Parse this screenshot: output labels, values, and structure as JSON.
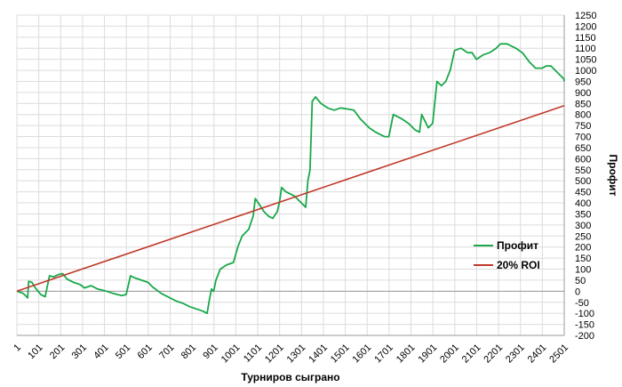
{
  "chart_data": {
    "type": "line",
    "xlabel": "Турниров сыграно",
    "ylabel": "Профит",
    "xlim": [
      1,
      2501
    ],
    "ylim": [
      -200,
      1250
    ],
    "x_ticks": [
      "1",
      "101",
      "201",
      "301",
      "401",
      "501",
      "601",
      "701",
      "801",
      "901",
      "1001",
      "1101",
      "1201",
      "1301",
      "1401",
      "1501",
      "1601",
      "1701",
      "1801",
      "1901",
      "2001",
      "2101",
      "2201",
      "2301",
      "2401",
      "2501"
    ],
    "y_ticks": [
      "1250",
      "1200",
      "1150",
      "1100",
      "1050",
      "1000",
      "950",
      "900",
      "850",
      "800",
      "750",
      "700",
      "650",
      "600",
      "550",
      "500",
      "450",
      "400",
      "350",
      "300",
      "250",
      "200",
      "150",
      "100",
      "50",
      "0",
      "-50",
      "-100",
      "-150",
      "-200"
    ],
    "grid": true,
    "legend_position": "bottom-right",
    "series": [
      {
        "name": "Профит",
        "color": "#1aa84a",
        "points": [
          [
            1,
            0
          ],
          [
            30,
            -10
          ],
          [
            50,
            -30
          ],
          [
            55,
            45
          ],
          [
            70,
            40
          ],
          [
            85,
            15
          ],
          [
            110,
            -15
          ],
          [
            130,
            -25
          ],
          [
            150,
            70
          ],
          [
            170,
            65
          ],
          [
            190,
            75
          ],
          [
            210,
            80
          ],
          [
            230,
            55
          ],
          [
            260,
            40
          ],
          [
            290,
            30
          ],
          [
            310,
            15
          ],
          [
            340,
            25
          ],
          [
            370,
            10
          ],
          [
            410,
            0
          ],
          [
            440,
            -10
          ],
          [
            480,
            -20
          ],
          [
            500,
            -15
          ],
          [
            520,
            70
          ],
          [
            540,
            60
          ],
          [
            570,
            50
          ],
          [
            600,
            40
          ],
          [
            620,
            20
          ],
          [
            660,
            -10
          ],
          [
            700,
            -30
          ],
          [
            730,
            -45
          ],
          [
            760,
            -55
          ],
          [
            790,
            -70
          ],
          [
            820,
            -80
          ],
          [
            850,
            -90
          ],
          [
            870,
            -100
          ],
          [
            880,
            -40
          ],
          [
            890,
            10
          ],
          [
            900,
            0
          ],
          [
            910,
            50
          ],
          [
            930,
            100
          ],
          [
            960,
            120
          ],
          [
            990,
            130
          ],
          [
            1010,
            200
          ],
          [
            1030,
            250
          ],
          [
            1060,
            280
          ],
          [
            1080,
            340
          ],
          [
            1090,
            420
          ],
          [
            1110,
            390
          ],
          [
            1130,
            360
          ],
          [
            1150,
            340
          ],
          [
            1170,
            330
          ],
          [
            1190,
            360
          ],
          [
            1200,
            400
          ],
          [
            1210,
            470
          ],
          [
            1230,
            450
          ],
          [
            1250,
            440
          ],
          [
            1270,
            430
          ],
          [
            1300,
            400
          ],
          [
            1320,
            380
          ],
          [
            1330,
            500
          ],
          [
            1340,
            550
          ],
          [
            1350,
            860
          ],
          [
            1365,
            880
          ],
          [
            1390,
            850
          ],
          [
            1420,
            830
          ],
          [
            1450,
            820
          ],
          [
            1480,
            830
          ],
          [
            1510,
            825
          ],
          [
            1540,
            820
          ],
          [
            1570,
            780
          ],
          [
            1610,
            740
          ],
          [
            1640,
            720
          ],
          [
            1680,
            700
          ],
          [
            1700,
            700
          ],
          [
            1720,
            800
          ],
          [
            1760,
            780
          ],
          [
            1790,
            760
          ],
          [
            1820,
            730
          ],
          [
            1840,
            720
          ],
          [
            1850,
            800
          ],
          [
            1860,
            780
          ],
          [
            1880,
            740
          ],
          [
            1900,
            760
          ],
          [
            1920,
            950
          ],
          [
            1940,
            930
          ],
          [
            1960,
            950
          ],
          [
            1980,
            1000
          ],
          [
            2000,
            1090
          ],
          [
            2030,
            1100
          ],
          [
            2060,
            1080
          ],
          [
            2080,
            1080
          ],
          [
            2100,
            1050
          ],
          [
            2130,
            1070
          ],
          [
            2160,
            1080
          ],
          [
            2190,
            1100
          ],
          [
            2210,
            1120
          ],
          [
            2240,
            1120
          ],
          [
            2260,
            1110
          ],
          [
            2280,
            1100
          ],
          [
            2310,
            1080
          ],
          [
            2340,
            1040
          ],
          [
            2370,
            1010
          ],
          [
            2400,
            1010
          ],
          [
            2420,
            1020
          ],
          [
            2440,
            1020
          ],
          [
            2460,
            1000
          ],
          [
            2480,
            980
          ],
          [
            2500,
            960
          ],
          [
            2501,
            950
          ]
        ]
      },
      {
        "name": "20% ROI",
        "color": "#c0392b",
        "points": [
          [
            1,
            0
          ],
          [
            2501,
            840
          ]
        ]
      }
    ]
  }
}
